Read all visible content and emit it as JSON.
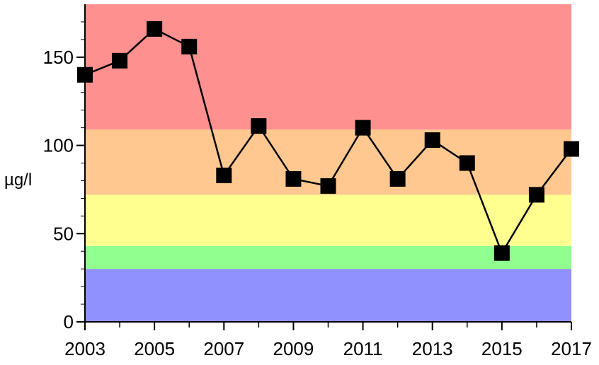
{
  "chart_data": {
    "type": "line",
    "title": "",
    "xlabel": "",
    "ylabel": "µg/l",
    "xlim": [
      2003,
      2017
    ],
    "ylim": [
      0,
      180
    ],
    "x_tick_labels": [
      "2003",
      "2005",
      "2007",
      "2009",
      "2011",
      "2013",
      "2015",
      "2017"
    ],
    "y_tick_labels": [
      "0",
      "50",
      "100",
      "150"
    ],
    "grid": false,
    "legend": "none",
    "background_bands": [
      {
        "from": 0,
        "to": 30,
        "color": "#9090ff"
      },
      {
        "from": 30,
        "to": 43,
        "color": "#90ff90"
      },
      {
        "from": 43,
        "to": 72,
        "color": "#ffff90"
      },
      {
        "from": 72,
        "to": 109,
        "color": "#ffc890"
      },
      {
        "from": 109,
        "to": 180,
        "color": "#ff9090"
      }
    ],
    "series": [
      {
        "x": [
          2003,
          2004,
          2005,
          2006,
          2007,
          2008,
          2009,
          2010,
          2011,
          2012,
          2013,
          2014,
          2015,
          2016,
          2017
        ],
        "values": [
          140,
          148,
          166,
          156,
          83,
          111,
          81,
          77,
          110,
          81,
          103,
          90,
          39,
          72,
          98
        ],
        "color": "#000000",
        "marker": "square"
      }
    ]
  }
}
